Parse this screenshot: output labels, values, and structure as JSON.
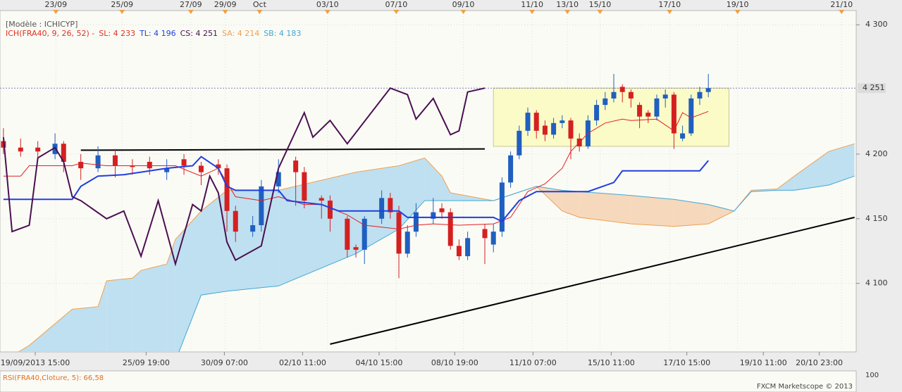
{
  "chart_data": {
    "type": "candlestick",
    "model_label": "[Modèle : ICHICYP]",
    "indicator_labels": [
      {
        "text": "ICH(FRA40, 9, 26, 52) -",
        "color": "#e03020"
      },
      {
        "text": "SL: 4 233",
        "color": "#e03020"
      },
      {
        "text": "TL: 4 196",
        "color": "#1f3fdf"
      },
      {
        "text": "CS: 4 251",
        "color": "#4a1050"
      },
      {
        "text": "SA: 4 214",
        "color": "#f0a050"
      },
      {
        "text": "SB: 4 183",
        "color": "#40a8d8"
      }
    ],
    "xlim": [
      -0.4,
      99.2
    ],
    "ylim": [
      4047,
      4311
    ],
    "yticks": [
      {
        "value": 4100,
        "label": "4 100"
      },
      {
        "value": 4150,
        "label": "4 150"
      },
      {
        "value": 4200,
        "label": "4 200"
      },
      {
        "value": 4300,
        "label": "4 300"
      }
    ],
    "xticks_top": [
      {
        "value": 6.1,
        "label": "23/09"
      },
      {
        "value": 13.8,
        "label": "25/09"
      },
      {
        "value": 21.8,
        "label": "27/09"
      },
      {
        "value": 25.8,
        "label": "29/09"
      },
      {
        "value": 29.8,
        "label": "Oct"
      },
      {
        "value": 37.7,
        "label": "03/10"
      },
      {
        "value": 45.7,
        "label": "07/10"
      },
      {
        "value": 53.5,
        "label": "09/10"
      },
      {
        "value": 61.5,
        "label": "11/10"
      },
      {
        "value": 65.6,
        "label": "13/10"
      },
      {
        "value": 69.4,
        "label": "15/10"
      },
      {
        "value": 77.5,
        "label": "17/10"
      },
      {
        "value": 85.4,
        "label": "19/10"
      },
      {
        "value": 97.5,
        "label": "21/10"
      }
    ],
    "xticks": [
      {
        "value": 3.7,
        "label": "19/09/2013 15:00"
      },
      {
        "value": 16.6,
        "label": "25/09 19:00"
      },
      {
        "value": 25.7,
        "label": "30/09 07:00"
      },
      {
        "value": 34.8,
        "label": "02/10 11:00"
      },
      {
        "value": 43.7,
        "label": "04/10 15:00"
      },
      {
        "value": 52.5,
        "label": "08/10 19:00"
      },
      {
        "value": 61.6,
        "label": "11/10 07:00"
      },
      {
        "value": 70.7,
        "label": "15/10 11:00"
      },
      {
        "value": 79.5,
        "label": "17/10 15:00"
      },
      {
        "value": 88.4,
        "label": "19/10 11:00"
      },
      {
        "value": 94.9,
        "label": "20/10 23:00"
      }
    ],
    "grid": true,
    "up_color": "#1f5fbf",
    "down_color": "#d42020",
    "candles": {
      "x": [
        0,
        2,
        4,
        6,
        7,
        9,
        11,
        13,
        15,
        17,
        19,
        21,
        23,
        25,
        26,
        27,
        29,
        30,
        32,
        34,
        35,
        37,
        38,
        40,
        41,
        42,
        44,
        45,
        46,
        47,
        48,
        50,
        51,
        52,
        53,
        54,
        56,
        57,
        58,
        59,
        60,
        61,
        62,
        63,
        64,
        65,
        66,
        67,
        68,
        69,
        70,
        71,
        72,
        73,
        74,
        75,
        76,
        77,
        78,
        79,
        80,
        81,
        82
      ],
      "open": [
        4210,
        4205,
        4205,
        4200,
        4208,
        4194,
        4189,
        4199,
        4191,
        4194,
        4186,
        4196,
        4191,
        4192,
        4189,
        4156,
        4140,
        4145,
        4175,
        4195,
        4186,
        4166,
        4164,
        4150,
        4128,
        4126,
        4150,
        4166,
        4155,
        4123,
        4140,
        4150,
        4158,
        4155,
        4129,
        4121,
        4142,
        4130,
        4140,
        4178,
        4199,
        4218,
        4232,
        4222,
        4215,
        4224,
        4226,
        4212,
        4206,
        4226,
        4238,
        4243,
        4252,
        4248,
        4238,
        4232,
        4229,
        4243,
        4246,
        4212,
        4216,
        4243,
        4248
      ],
      "high": [
        4220,
        4212,
        4210,
        4216,
        4210,
        4200,
        4206,
        4204,
        4196,
        4198,
        4196,
        4200,
        4194,
        4196,
        4192,
        4160,
        4152,
        4180,
        4196,
        4198,
        4190,
        4168,
        4168,
        4152,
        4130,
        4152,
        4172,
        4170,
        4160,
        4145,
        4162,
        4166,
        4162,
        4158,
        4134,
        4140,
        4146,
        4146,
        4182,
        4202,
        4222,
        4236,
        4234,
        4226,
        4228,
        4230,
        4228,
        4216,
        4230,
        4242,
        4248,
        4262,
        4254,
        4250,
        4240,
        4234,
        4246,
        4250,
        4248,
        4222,
        4246,
        4252,
        4262
      ],
      "low": [
        4200,
        4198,
        4196,
        4196,
        4186,
        4180,
        4186,
        4182,
        4184,
        4184,
        4180,
        4184,
        4176,
        4184,
        4140,
        4132,
        4136,
        4140,
        4170,
        4160,
        4158,
        4150,
        4140,
        4120,
        4120,
        4115,
        4146,
        4150,
        4104,
        4120,
        4136,
        4146,
        4150,
        4126,
        4118,
        4118,
        4115,
        4124,
        4136,
        4174,
        4196,
        4214,
        4212,
        4210,
        4212,
        4220,
        4196,
        4202,
        4204,
        4222,
        4234,
        4240,
        4240,
        4236,
        4220,
        4224,
        4226,
        4236,
        4204,
        4210,
        4214,
        4238,
        4244
      ],
      "close": [
        4205,
        4202,
        4202,
        4208,
        4194,
        4189,
        4199,
        4191,
        4190,
        4189,
        4189,
        4191,
        4186,
        4189,
        4156,
        4140,
        4145,
        4175,
        4186,
        4186,
        4164,
        4164,
        4150,
        4126,
        4126,
        4150,
        4166,
        4155,
        4123,
        4140,
        4155,
        4155,
        4155,
        4129,
        4121,
        4135,
        4135,
        4140,
        4178,
        4199,
        4218,
        4232,
        4218,
        4215,
        4224,
        4226,
        4212,
        4206,
        4226,
        4238,
        4243,
        4248,
        4248,
        4243,
        4229,
        4229,
        4243,
        4246,
        4216,
        4216,
        4243,
        4248,
        4251
      ]
    },
    "cloud": {
      "x": [
        0,
        3,
        8,
        11,
        12,
        15,
        16,
        19,
        20,
        23,
        26,
        32,
        41,
        46,
        49,
        51,
        52,
        57,
        62,
        65,
        67,
        73,
        78,
        82,
        85,
        87,
        90,
        92,
        96,
        99
      ],
      "sa": [
        4040,
        4052,
        4080,
        4082,
        4102,
        4104,
        4110,
        4115,
        4134,
        4156,
        4172,
        4172,
        4186,
        4191,
        4197,
        4183,
        4170,
        4164,
        4175,
        4156,
        4151,
        4146,
        4144,
        4146,
        4156,
        4172,
        4173,
        4183,
        4202,
        4208
      ],
      "sb": [
        4040,
        4040,
        4040,
        4040,
        4040,
        4040,
        4040,
        4040,
        4040,
        4091,
        4094,
        4098,
        4123,
        4142,
        4164,
        4164,
        4164,
        4164,
        4175,
        4172,
        4171,
        4168,
        4165,
        4161,
        4156,
        4171,
        4172,
        4172,
        4176,
        4183
      ],
      "sa_color": "#f0a050",
      "sb_color": "#40a8d8",
      "fill_up": "#bfe0f0",
      "fill_down": "#f6d8bc"
    },
    "overlays": [
      {
        "color": "#e02020",
        "width": 1,
        "x": [
          0,
          2,
          3,
          5,
          8,
          9,
          12,
          20,
          23,
          25,
          26,
          27,
          30,
          32,
          35,
          37,
          40,
          42,
          46,
          48,
          50,
          53,
          57,
          59,
          61,
          63,
          65,
          66,
          68,
          70,
          72,
          73,
          76,
          78,
          79,
          80,
          82
        ],
        "values": [
          4183,
          4183,
          4191,
          4191,
          4191,
          4193,
          4191,
          4191,
          4183,
          4189,
          4178,
          4167,
          4164,
          4167,
          4161,
          4161,
          4153,
          4145,
          4142,
          4145,
          4146,
          4145,
          4146,
          4151,
          4171,
          4177,
          4189,
          4202,
          4216,
          4224,
          4227,
          4226,
          4227,
          4218,
          4232,
          4228,
          4233
        ]
      },
      {
        "color": "#1f3fdf",
        "width": 2,
        "x": [
          0,
          8,
          9,
          11,
          14,
          19,
          22,
          23,
          25,
          26,
          27,
          32,
          33,
          37,
          39,
          46,
          47,
          57,
          58,
          60,
          62,
          68,
          71,
          72,
          81,
          82
        ],
        "values": [
          4165,
          4165,
          4175,
          4183,
          4184,
          4189,
          4191,
          4198,
          4189,
          4175,
          4172,
          4172,
          4164,
          4161,
          4156,
          4156,
          4151,
          4151,
          4148,
          4164,
          4171,
          4171,
          4178,
          4187,
          4187,
          4195
        ]
      },
      {
        "color": "#4a1050",
        "width": 2,
        "x": [
          0,
          1,
          3,
          4,
          6,
          7,
          8,
          9,
          12,
          14,
          16,
          18,
          20,
          22,
          23,
          24,
          25,
          26,
          27,
          30,
          32,
          35,
          36,
          38,
          40,
          45,
          47,
          48,
          50,
          52,
          53,
          54,
          56
        ],
        "values": [
          4213,
          4140,
          4145,
          4197,
          4205,
          4194,
          4167,
          4164,
          4150,
          4156,
          4121,
          4164,
          4115,
          4161,
          4156,
          4183,
          4170,
          4132,
          4118,
          4129,
          4189,
          4232,
          4213,
          4226,
          4208,
          4251,
          4246,
          4227,
          4243,
          4215,
          4218,
          4248,
          4251
        ]
      }
    ],
    "drawn_lines": [
      {
        "color": "#000000",
        "x": [
          9,
          56
        ],
        "values": [
          4203,
          4204
        ]
      },
      {
        "color": "#000000",
        "x": [
          38,
          99
        ],
        "values": [
          4053,
          4151
        ]
      }
    ],
    "highlight_box": {
      "x": [
        57,
        84.4
      ],
      "values": [
        4251,
        4206
      ],
      "color": "#fafac0"
    },
    "price_label": {
      "value": 4251,
      "label": "4 251"
    },
    "rsi_label": "RSI(FRA40,Cloture, 5): 66,58",
    "rsi_scale_label": "100",
    "footer": "FXCM Marketscope © 2013"
  }
}
